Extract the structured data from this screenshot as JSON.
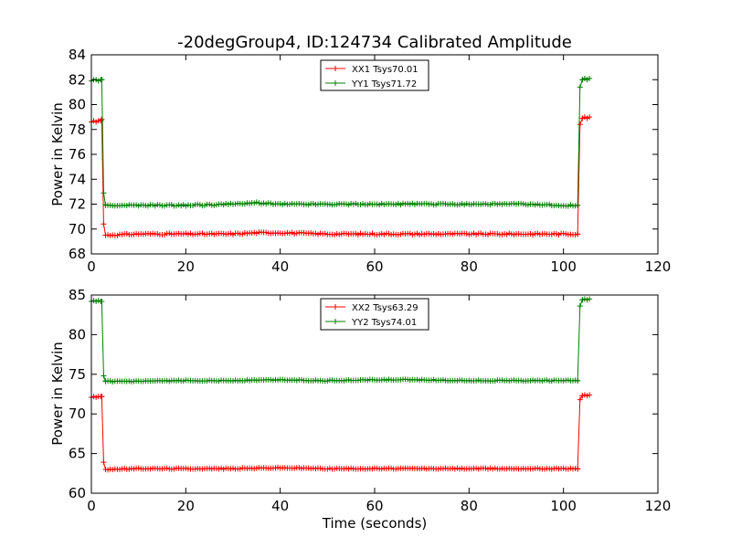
{
  "figure": {
    "title": "-20degGroup4, ID:124734 Calibrated Amplitude",
    "xlabel": "Time (seconds)"
  },
  "colors": {
    "red": "#ff0000",
    "green": "#008000"
  },
  "chart_data": [
    {
      "type": "line",
      "ylabel": "Power in Kelvin",
      "xlim": [
        0,
        120
      ],
      "ylim": [
        68,
        84
      ],
      "xticks": [
        0,
        20,
        40,
        60,
        80,
        100,
        120
      ],
      "yticks": [
        68,
        70,
        72,
        74,
        76,
        78,
        80,
        82,
        84
      ],
      "legend_position": "top-center",
      "series": [
        {
          "name": "XX1 Tsys70.01",
          "color": "#ff0000",
          "segments": [
            {
              "x": [
                0,
                0.5,
                1.0,
                1.5,
                2.0,
                2.2
              ],
              "y": [
                78.6,
                78.7,
                78.6,
                78.7,
                78.7,
                78.8
              ]
            },
            {
              "x": [
                2.2,
                2.6,
                3.0
              ],
              "y": [
                78.8,
                70.4,
                69.5
              ]
            },
            {
              "x_start": 3.0,
              "x_end": 103.0,
              "step": 0.5,
              "values": [
                [
                  3,
                  69.5
                ],
                [
                  10,
                  69.6
                ],
                [
                  20,
                  69.6
                ],
                [
                  30,
                  69.6
                ],
                [
                  35,
                  69.7
                ],
                [
                  40,
                  69.7
                ],
                [
                  50,
                  69.6
                ],
                [
                  60,
                  69.6
                ],
                [
                  70,
                  69.6
                ],
                [
                  80,
                  69.6
                ],
                [
                  90,
                  69.6
                ],
                [
                  100,
                  69.6
                ],
                [
                  103,
                  69.6
                ]
              ]
            },
            {
              "x": [
                103.0,
                103.5,
                104.0
              ],
              "y": [
                69.6,
                78.4,
                78.9
              ]
            },
            {
              "x": [
                104.0,
                104.5,
                105.0,
                105.5
              ],
              "y": [
                78.9,
                79.0,
                78.9,
                79.0
              ]
            }
          ]
        },
        {
          "name": "YY1 Tsys71.72",
          "color": "#008000",
          "segments": [
            {
              "x": [
                0,
                0.5,
                1.0,
                1.5,
                2.0,
                2.2
              ],
              "y": [
                81.9,
                82.0,
                82.0,
                81.9,
                82.0,
                82.0
              ]
            },
            {
              "x": [
                2.2,
                2.6,
                3.0
              ],
              "y": [
                82.0,
                72.9,
                71.9
              ]
            },
            {
              "x_start": 3.0,
              "x_end": 103.0,
              "step": 0.5,
              "values": [
                [
                  3,
                  71.9
                ],
                [
                  10,
                  71.9
                ],
                [
                  20,
                  71.9
                ],
                [
                  30,
                  72.0
                ],
                [
                  35,
                  72.1
                ],
                [
                  40,
                  72.0
                ],
                [
                  50,
                  72.0
                ],
                [
                  60,
                  72.0
                ],
                [
                  70,
                  72.0
                ],
                [
                  80,
                  72.0
                ],
                [
                  90,
                  72.0
                ],
                [
                  100,
                  71.9
                ],
                [
                  103,
                  71.9
                ]
              ]
            },
            {
              "x": [
                103.0,
                103.5,
                104.0
              ],
              "y": [
                71.9,
                81.4,
                82.0
              ]
            },
            {
              "x": [
                104.0,
                104.5,
                105.0,
                105.5
              ],
              "y": [
                82.0,
                82.1,
                82.0,
                82.1
              ]
            }
          ]
        }
      ]
    },
    {
      "type": "line",
      "ylabel": "Power in Kelvin",
      "xlim": [
        0,
        120
      ],
      "ylim": [
        60,
        85
      ],
      "xticks": [
        0,
        20,
        40,
        60,
        80,
        100,
        120
      ],
      "yticks": [
        60,
        65,
        70,
        75,
        80,
        85
      ],
      "legend_position": "top-center",
      "series": [
        {
          "name": "XX2 Tsys63.29",
          "color": "#ff0000",
          "segments": [
            {
              "x": [
                0,
                0.5,
                1.0,
                1.5,
                2.0,
                2.2
              ],
              "y": [
                72.1,
                72.2,
                72.1,
                72.2,
                72.2,
                72.2
              ]
            },
            {
              "x": [
                2.2,
                2.6,
                3.0
              ],
              "y": [
                72.2,
                63.9,
                63.0
              ]
            },
            {
              "x_start": 3.0,
              "x_end": 103.0,
              "step": 0.5,
              "values": [
                [
                  3,
                  63.0
                ],
                [
                  10,
                  63.1
                ],
                [
                  20,
                  63.1
                ],
                [
                  30,
                  63.1
                ],
                [
                  40,
                  63.2
                ],
                [
                  50,
                  63.1
                ],
                [
                  60,
                  63.1
                ],
                [
                  70,
                  63.1
                ],
                [
                  80,
                  63.1
                ],
                [
                  90,
                  63.1
                ],
                [
                  100,
                  63.1
                ],
                [
                  103,
                  63.1
                ]
              ]
            },
            {
              "x": [
                103.0,
                103.5,
                104.0
              ],
              "y": [
                63.1,
                71.8,
                72.3
              ]
            },
            {
              "x": [
                104.0,
                104.5,
                105.0,
                105.5
              ],
              "y": [
                72.3,
                72.4,
                72.3,
                72.4
              ]
            }
          ]
        },
        {
          "name": "YY2 Tsys74.01",
          "color": "#008000",
          "segments": [
            {
              "x": [
                0,
                0.5,
                1.0,
                1.5,
                2.0,
                2.2
              ],
              "y": [
                84.2,
                84.3,
                84.2,
                84.3,
                84.2,
                84.2
              ]
            },
            {
              "x": [
                2.2,
                2.6,
                3.0
              ],
              "y": [
                84.2,
                74.8,
                74.1
              ]
            },
            {
              "x_start": 3.0,
              "x_end": 103.0,
              "step": 0.5,
              "values": [
                [
                  3,
                  74.1
                ],
                [
                  10,
                  74.1
                ],
                [
                  20,
                  74.2
                ],
                [
                  30,
                  74.2
                ],
                [
                  40,
                  74.3
                ],
                [
                  50,
                  74.2
                ],
                [
                  60,
                  74.3
                ],
                [
                  70,
                  74.3
                ],
                [
                  80,
                  74.2
                ],
                [
                  90,
                  74.2
                ],
                [
                  100,
                  74.2
                ],
                [
                  103,
                  74.2
                ]
              ]
            },
            {
              "x": [
                103.0,
                103.5,
                104.0
              ],
              "y": [
                74.2,
                83.6,
                84.4
              ]
            },
            {
              "x": [
                104.0,
                104.5,
                105.0,
                105.5
              ],
              "y": [
                84.4,
                84.5,
                84.4,
                84.5
              ]
            }
          ]
        }
      ]
    }
  ]
}
